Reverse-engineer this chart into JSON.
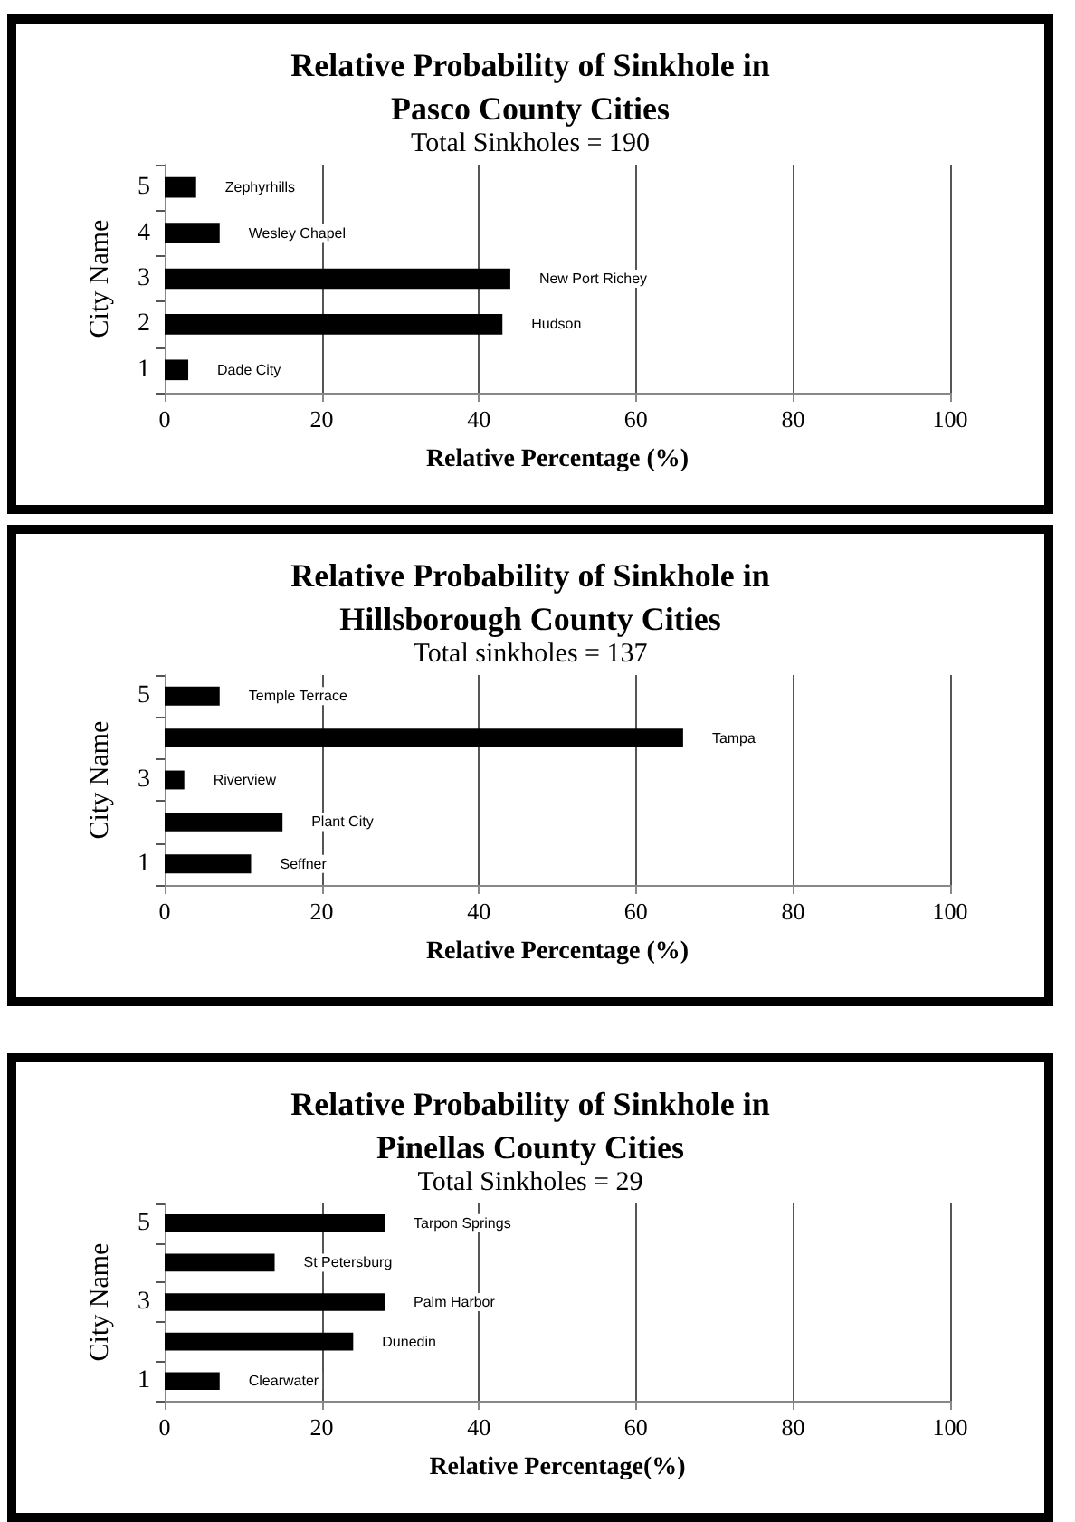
{
  "chart_data": [
    {
      "type": "bar",
      "orientation": "horizontal",
      "title": "Relative Probability of Sinkhole in\nPasco County Cities",
      "subtitle": "Total Sinkholes = 190",
      "xlabel": "Relative Percentage (%)",
      "ylabel": "City Name",
      "categories": [
        "5",
        "4",
        "3",
        "2",
        "1"
      ],
      "values": [
        4,
        7,
        44,
        43,
        3
      ],
      "value_labels": [
        "Zephyrhills",
        "Wesley Chapel",
        "New Port Richey",
        "Hudson",
        "Dade City"
      ],
      "color": "#000000",
      "xlim": [
        0,
        100
      ],
      "xticks": [
        0,
        20,
        40,
        60,
        80,
        100
      ],
      "grid": "x"
    },
    {
      "type": "bar",
      "orientation": "horizontal",
      "title": "Relative Probability of Sinkhole in\nHillsborough County Cities",
      "subtitle": "Total sinkholes = 137",
      "xlabel": "Relative Percentage (%)",
      "ylabel": "City Name",
      "categories": [
        "5",
        null,
        "3",
        null,
        "1"
      ],
      "values": [
        7,
        66,
        2.5,
        15,
        11
      ],
      "value_labels": [
        "Temple Terrace",
        "Tampa",
        "Riverview",
        "Plant City",
        "Seffner"
      ],
      "color": "#000000",
      "xlim": [
        0,
        100
      ],
      "xticks": [
        0,
        20,
        40,
        60,
        80,
        100
      ],
      "grid": "x"
    },
    {
      "type": "bar",
      "orientation": "horizontal",
      "title": "Relative Probability of Sinkhole in\nPinellas County Cities",
      "subtitle": "Total Sinkholes = 29",
      "xlabel": "Relative Percentage(%)",
      "ylabel": "City Name",
      "categories": [
        "5",
        null,
        "3",
        null,
        "1"
      ],
      "values": [
        28,
        14,
        28,
        24,
        7
      ],
      "value_labels": [
        "Tarpon Springs",
        "St Petersburg",
        "Palm Harbor",
        "Dunedin",
        "Clearwater"
      ],
      "color": "#000000",
      "xlim": [
        0,
        100
      ],
      "xticks": [
        0,
        20,
        40,
        60,
        80,
        100
      ],
      "grid": "x"
    }
  ]
}
